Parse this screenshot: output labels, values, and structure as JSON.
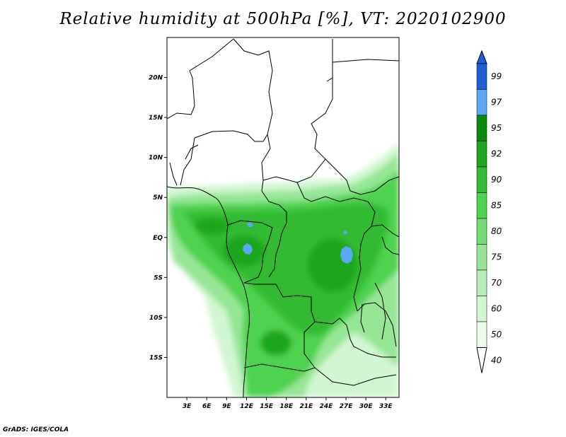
{
  "title": "Relative humidity at 500hPa [%], VT: 2020102900",
  "credit": "GrADS: IGES/COLA",
  "map": {
    "lon_range": [
      0,
      35
    ],
    "lat_range": [
      -20,
      25
    ],
    "lat_ticks": [
      {
        "value": 20,
        "label": "20N"
      },
      {
        "value": 15,
        "label": "15N"
      },
      {
        "value": 10,
        "label": "10N"
      },
      {
        "value": 5,
        "label": "5N"
      },
      {
        "value": 0,
        "label": "EQ"
      },
      {
        "value": -5,
        "label": "5S"
      },
      {
        "value": -10,
        "label": "10S"
      },
      {
        "value": -15,
        "label": "15S"
      }
    ],
    "lon_ticks": [
      {
        "value": 3,
        "label": "3E"
      },
      {
        "value": 6,
        "label": "6E"
      },
      {
        "value": 9,
        "label": "9E"
      },
      {
        "value": 12,
        "label": "12E"
      },
      {
        "value": 15,
        "label": "15E"
      },
      {
        "value": 18,
        "label": "18E"
      },
      {
        "value": 21,
        "label": "21E"
      },
      {
        "value": 24,
        "label": "24E"
      },
      {
        "value": 27,
        "label": "27E"
      },
      {
        "value": 30,
        "label": "30E"
      },
      {
        "value": 33,
        "label": "33E"
      }
    ]
  },
  "colorbar": {
    "levels": [
      {
        "value": 99,
        "label": "99",
        "color": "#1e5fd4"
      },
      {
        "value": 97,
        "label": "97",
        "color": "#3a7ff0"
      },
      {
        "value": 95,
        "label": "95",
        "color": "#5aa8f5"
      },
      {
        "value": 92,
        "label": "92",
        "color": "#0a8a0a"
      },
      {
        "value": 90,
        "label": "90",
        "color": "#1fa61f"
      },
      {
        "value": 85,
        "label": "85",
        "color": "#33bb33"
      },
      {
        "value": 80,
        "label": "80",
        "color": "#4fd24f"
      },
      {
        "value": 75,
        "label": "75",
        "color": "#72dc72"
      },
      {
        "value": 70,
        "label": "70",
        "color": "#96e696"
      },
      {
        "value": 60,
        "label": "60",
        "color": "#b6f0b6"
      },
      {
        "value": 50,
        "label": "50",
        "color": "#d2f6d2"
      },
      {
        "value": 40,
        "label": "40",
        "color": "#ebfbeb"
      }
    ],
    "top_color": "#1e5fd4",
    "bottom_color": "#ffffff"
  }
}
